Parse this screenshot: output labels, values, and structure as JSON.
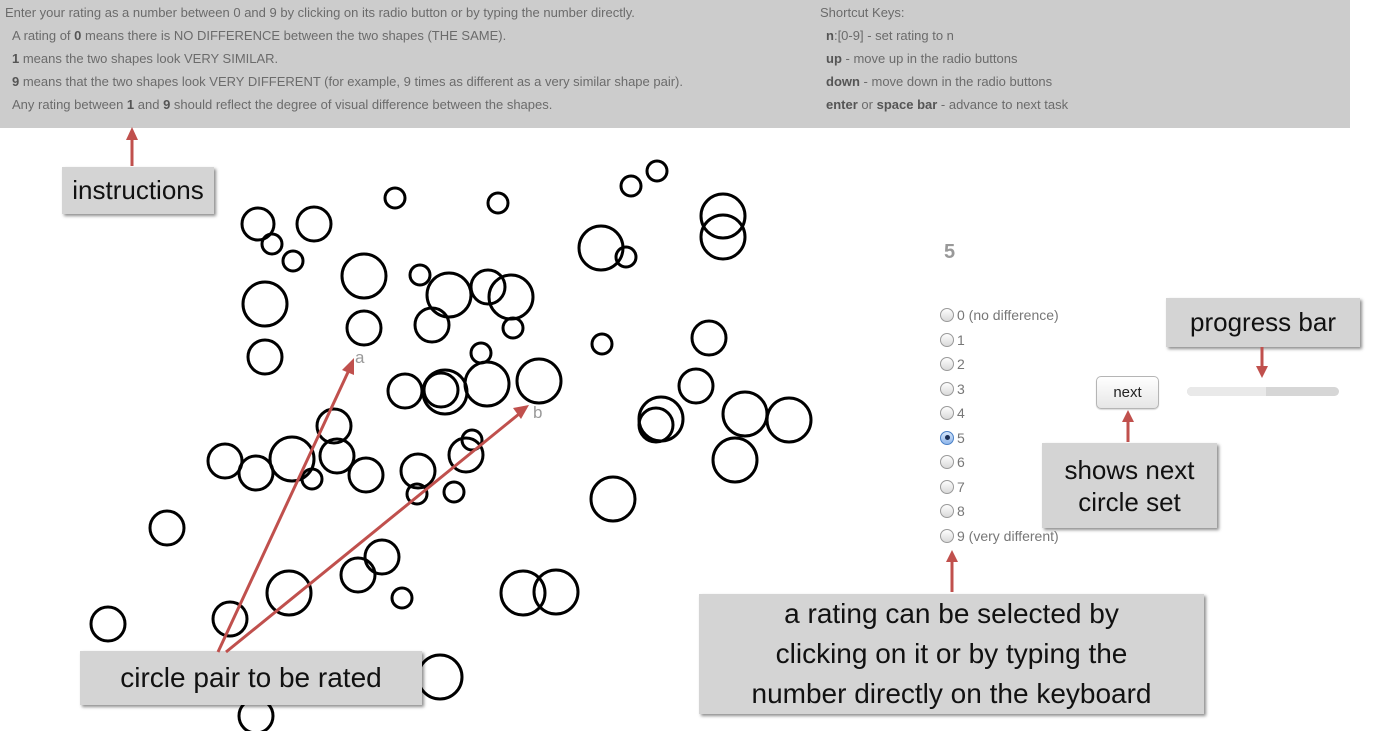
{
  "instructions": {
    "line1": "Enter your rating as a number between 0 and 9 by clicking on its radio button or by typing the number directly.",
    "line2_prefix": "A rating of ",
    "line2_bold": "0",
    "line2_suffix": " means there is NO DIFFERENCE between the two shapes (THE SAME).",
    "line3_bold": "1",
    "line3_suffix": " means the two shapes look VERY SIMILAR.",
    "line4_bold": "9",
    "line4_suffix": " means that the two shapes look VERY DIFFERENT (for example, 9 times as different as a very similar shape pair).",
    "line5_prefix": "Any rating between ",
    "line5_bold1": "1",
    "line5_mid": " and ",
    "line5_bold2": "9",
    "line5_suffix": " should reflect the degree of visual difference between the shapes."
  },
  "shortcuts": {
    "title": "Shortcut Keys:",
    "items": [
      {
        "key": "n",
        "desc": ":[0-9] - set rating to n"
      },
      {
        "key": "up",
        "desc": " - move up in the radio buttons"
      },
      {
        "key": "down",
        "desc": " - move down in the radio buttons"
      },
      {
        "key": "enter",
        "mid": " or ",
        "key2": "space bar",
        "desc": " - advance to next task"
      }
    ]
  },
  "pair_labels": {
    "a": "a",
    "b": "b"
  },
  "rating": {
    "current_value": "5",
    "selected_index": 5,
    "options": [
      {
        "label": "0 (no difference)"
      },
      {
        "label": "1"
      },
      {
        "label": "2"
      },
      {
        "label": "3"
      },
      {
        "label": "4"
      },
      {
        "label": "5"
      },
      {
        "label": "6"
      },
      {
        "label": "7"
      },
      {
        "label": "8"
      },
      {
        "label": "9 (very different)"
      }
    ]
  },
  "next_button": {
    "label": "next"
  },
  "progress": {
    "fraction": 0.52
  },
  "callouts": {
    "instructions": "instructions",
    "progress_bar": "progress bar",
    "next_line1": "shows next",
    "next_line2": "circle set",
    "rating_line1": "a rating can be selected by",
    "rating_line2": "clicking on it  or by typing the",
    "rating_line3": "number directly  on the keyboard",
    "circle_pair": "circle pair to be rated"
  },
  "colors": {
    "panel_background": "#cccccc",
    "callout_background": "#d4d4d4",
    "arrow": "#c0504d",
    "radio_selected": "#4a80c6"
  }
}
